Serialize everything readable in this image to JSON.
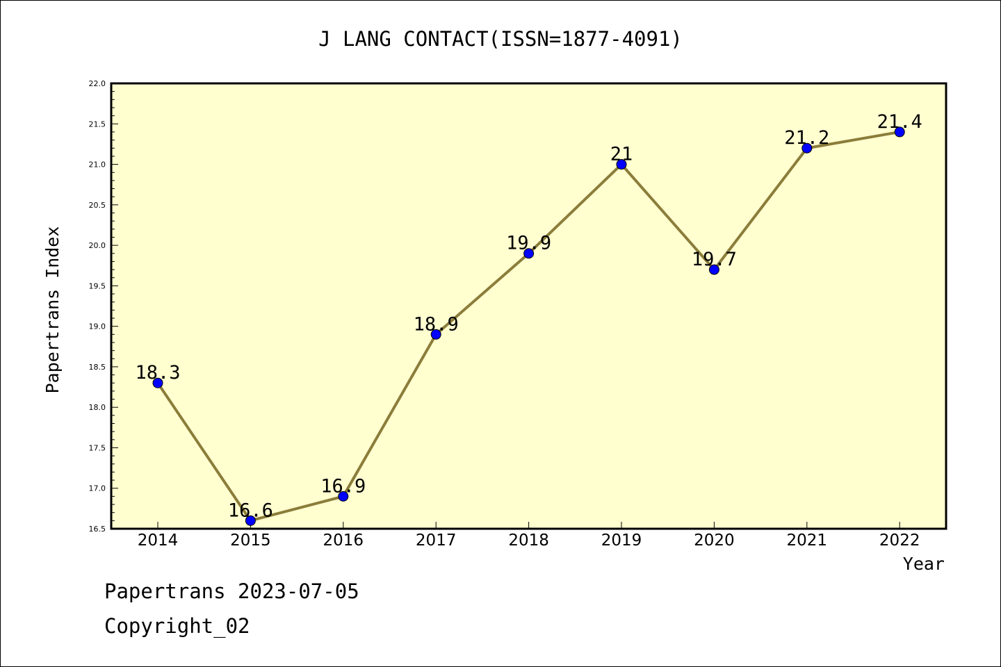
{
  "chart_data": {
    "type": "line",
    "title": "J LANG CONTACT(ISSN=1877-4091)",
    "xlabel": "Year",
    "ylabel": "Papertrans Index",
    "categories": [
      "2014",
      "2015",
      "2016",
      "2017",
      "2018",
      "2019",
      "2020",
      "2021",
      "2022"
    ],
    "values": [
      18.3,
      16.6,
      16.9,
      18.9,
      19.9,
      21.0,
      19.7,
      21.2,
      21.4
    ],
    "data_labels": [
      "18.3",
      "16.6",
      "16.9",
      "18.9",
      "19.9",
      "21",
      "19.7",
      "21.2",
      "21.4"
    ],
    "ylim": [
      16.5,
      22.0
    ],
    "yticks": [
      "16.5",
      "17.0",
      "17.5",
      "18.0",
      "18.5",
      "19.0",
      "19.5",
      "20.0",
      "20.5",
      "21.0",
      "21.5",
      "22.0"
    ],
    "grid": false,
    "colors": {
      "plot_bg": "#ffffd0",
      "line": "#8b7d3a",
      "marker": "#0000ff"
    }
  },
  "footer": {
    "line1": "Papertrans 2023-07-05",
    "line2": "Copyright_02"
  }
}
